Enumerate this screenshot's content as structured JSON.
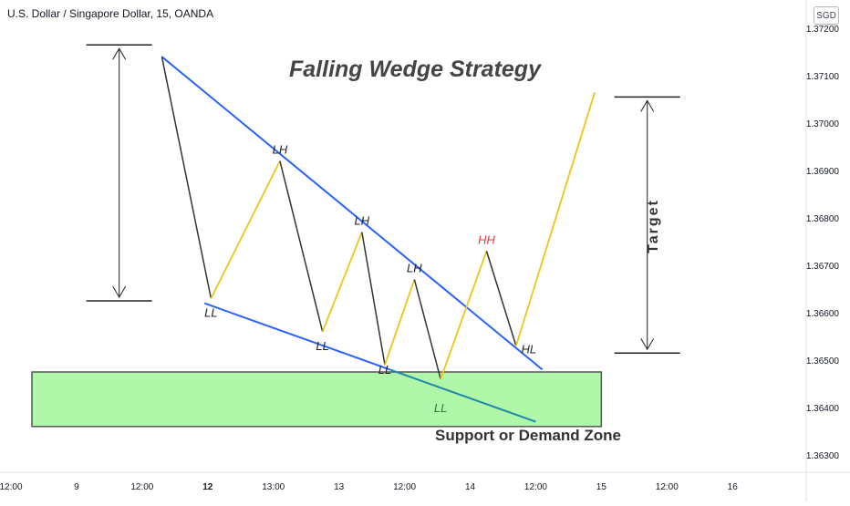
{
  "header": {
    "symbol_title": "U.S. Dollar / Singapore Dollar, 15, OANDA",
    "currency_badge": "SGD"
  },
  "chart_data": {
    "type": "line",
    "title": "Falling Wedge Strategy",
    "subtitle": "",
    "xlabel": "",
    "ylabel": "",
    "ylim": [
      1.3625,
      1.3725
    ],
    "y_ticks": [
      1.372,
      1.371,
      1.37,
      1.369,
      1.368,
      1.367,
      1.366,
      1.365,
      1.364,
      1.363
    ],
    "x_ticks": [
      {
        "label": "12:00",
        "x": 0
      },
      {
        "label": "9",
        "x": 1
      },
      {
        "label": "12:00",
        "x": 2
      },
      {
        "label": "12",
        "x": 3,
        "bold": true
      },
      {
        "label": "13:00",
        "x": 4
      },
      {
        "label": "13",
        "x": 5
      },
      {
        "label": "12:00",
        "x": 6
      },
      {
        "label": "14",
        "x": 7
      },
      {
        "label": "12:00",
        "x": 8
      },
      {
        "label": "15",
        "x": 9
      },
      {
        "label": "12:00",
        "x": 10
      },
      {
        "label": "16",
        "x": 11
      }
    ],
    "xlim": [
      0,
      11.4
    ],
    "grid": false,
    "price_path": [
      {
        "x": 2.3,
        "y": 1.3714,
        "label": ""
      },
      {
        "x": 3.05,
        "y": 1.3663,
        "label": "LL"
      },
      {
        "x": 4.1,
        "y": 1.3692,
        "label": "LH"
      },
      {
        "x": 4.75,
        "y": 1.3656,
        "label": "LL"
      },
      {
        "x": 5.35,
        "y": 1.3677,
        "label": "LH"
      },
      {
        "x": 5.7,
        "y": 1.3649,
        "label": "LL"
      },
      {
        "x": 6.15,
        "y": 1.3667,
        "label": "LH"
      },
      {
        "x": 6.55,
        "y": 1.3646,
        "label": "LL"
      },
      {
        "x": 7.25,
        "y": 1.3673,
        "label": "HH"
      },
      {
        "x": 7.7,
        "y": 1.3653,
        "label": "HL"
      },
      {
        "x": 8.9,
        "y": 1.37065,
        "label": ""
      }
    ],
    "upper_trendline": [
      {
        "x": 2.3,
        "y": 1.3714
      },
      {
        "x": 8.1,
        "y": 1.3648
      }
    ],
    "lower_trendline": [
      {
        "x": 2.95,
        "y": 1.3662
      },
      {
        "x": 8.0,
        "y": 1.3637
      }
    ],
    "demand_zone": {
      "y_top": 1.36475,
      "y_bottom": 1.3636,
      "x_start": 0.32,
      "x_end": 9.0,
      "label": "Support or Demand Zone"
    },
    "height_measure": {
      "x": 1.65,
      "y_top": 1.37165,
      "y_bottom": 1.36625
    },
    "target_measure": {
      "x": 9.7,
      "y_top": 1.37055,
      "y_bottom": 1.36515,
      "label": "Target"
    },
    "colors": {
      "up_leg": "#f0c419",
      "down_leg": "#333333",
      "trendline": "#2962ff",
      "lower_trendline_tail": "#1e88a8",
      "zone_fill": "#b1f7a9",
      "zone_border": "#555555",
      "hh_label": "#e53935",
      "ll_zone_label": "#2e7d32"
    }
  }
}
